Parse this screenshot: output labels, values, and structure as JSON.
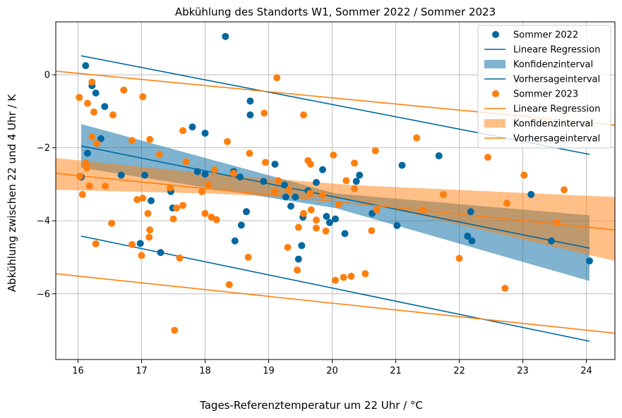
{
  "chart_data": {
    "type": "scatter",
    "title": "Abkühlung des Standorts W1, Sommer 2022 / Sommer 2023",
    "xlabel": "Tages-Referenztemperatur um 22 Uhr / °C",
    "ylabel": "Abkühlung zwischen 22 und 4 Uhr / K",
    "xlim": [
      15.65,
      24.45
    ],
    "ylim": [
      -7.8,
      1.45
    ],
    "xticks": [
      16,
      17,
      18,
      19,
      20,
      21,
      22,
      23,
      24
    ],
    "yticks": [
      0,
      -2,
      -4,
      -6
    ],
    "grid": true,
    "legend_position": "top-right",
    "legend": [
      {
        "label": "Sommer 2022",
        "kind": "marker",
        "color": "#00689f"
      },
      {
        "label": "Lineare Regression",
        "kind": "line",
        "color": "#00689f"
      },
      {
        "label": "Konfidenzinterval",
        "kind": "band",
        "color": "#00689f"
      },
      {
        "label": "Vorhersageinterval",
        "kind": "line",
        "color": "#00689f"
      },
      {
        "label": "Sommer 2023",
        "kind": "marker",
        "color": "#ff7f0e"
      },
      {
        "label": "Lineare Regression",
        "kind": "line",
        "color": "#ff7f0e"
      },
      {
        "label": "Konfidenzinterval",
        "kind": "band",
        "color": "#ff7f0e"
      },
      {
        "label": "Vorhersageinterval",
        "kind": "line",
        "color": "#ff7f0e"
      }
    ],
    "series": [
      {
        "name": "Sommer 2022",
        "color": "#00689f",
        "points": [
          [
            16.05,
            -2.8
          ],
          [
            16.12,
            0.25
          ],
          [
            16.15,
            -2.15
          ],
          [
            16.22,
            -0.3
          ],
          [
            16.28,
            -0.5
          ],
          [
            16.36,
            -1.75
          ],
          [
            16.42,
            -0.87
          ],
          [
            16.68,
            -2.75
          ],
          [
            16.98,
            -4.62
          ],
          [
            17.05,
            -2.75
          ],
          [
            17.15,
            -3.45
          ],
          [
            17.3,
            -4.87
          ],
          [
            17.46,
            -3.2
          ],
          [
            17.49,
            -3.65
          ],
          [
            17.8,
            -1.43
          ],
          [
            17.88,
            -2.65
          ],
          [
            18.0,
            -2.72
          ],
          [
            18.0,
            -1.6
          ],
          [
            18.32,
            1.05
          ],
          [
            18.45,
            -2.65
          ],
          [
            18.47,
            -4.55
          ],
          [
            18.55,
            -2.8
          ],
          [
            18.57,
            -4.12
          ],
          [
            18.65,
            -3.75
          ],
          [
            18.71,
            -1.1
          ],
          [
            18.71,
            -0.72
          ],
          [
            18.92,
            -2.92
          ],
          [
            19.1,
            -2.45
          ],
          [
            19.25,
            -3.02
          ],
          [
            19.27,
            -3.35
          ],
          [
            19.35,
            -3.6
          ],
          [
            19.42,
            -3.35
          ],
          [
            19.47,
            -5.05
          ],
          [
            19.52,
            -4.68
          ],
          [
            19.54,
            -3.9
          ],
          [
            19.62,
            -3.18
          ],
          [
            19.75,
            -2.95
          ],
          [
            19.85,
            -2.6
          ],
          [
            19.91,
            -3.88
          ],
          [
            19.96,
            -4.05
          ],
          [
            20.05,
            -3.95
          ],
          [
            20.2,
            -4.35
          ],
          [
            20.38,
            -2.92
          ],
          [
            20.43,
            -2.75
          ],
          [
            20.63,
            -3.8
          ],
          [
            21.02,
            -4.13
          ],
          [
            21.1,
            -2.48
          ],
          [
            21.68,
            -2.22
          ],
          [
            22.13,
            -4.42
          ],
          [
            22.18,
            -3.75
          ],
          [
            22.2,
            -4.55
          ],
          [
            23.13,
            -3.28
          ],
          [
            23.45,
            -4.55
          ],
          [
            24.05,
            -5.1
          ]
        ],
        "regression": {
          "x": [
            16.05,
            24.05
          ],
          "y": [
            -1.95,
            -4.75
          ]
        },
        "confidence_band": {
          "x": [
            16.05,
            20.05,
            24.05
          ],
          "upper": [
            -1.35,
            -3.25,
            -3.85
          ],
          "lower": [
            -2.55,
            -3.65,
            -5.65
          ]
        },
        "prediction_interval": {
          "x": [
            16.05,
            24.05
          ],
          "upper": [
            0.52,
            -2.18
          ],
          "lower": [
            -4.42,
            -7.3
          ]
        }
      },
      {
        "name": "Sommer 2023",
        "color": "#ff7f0e",
        "points": [
          [
            16.02,
            -0.62
          ],
          [
            16.03,
            -2.78
          ],
          [
            16.07,
            -3.28
          ],
          [
            16.12,
            -2.42
          ],
          [
            16.14,
            -2.55
          ],
          [
            16.15,
            -0.78
          ],
          [
            16.18,
            -3.05
          ],
          [
            16.22,
            -0.2
          ],
          [
            16.22,
            -1.7
          ],
          [
            16.25,
            -1.02
          ],
          [
            16.28,
            -4.63
          ],
          [
            16.3,
            -1.88
          ],
          [
            16.43,
            -3.05
          ],
          [
            16.53,
            -4.07
          ],
          [
            16.55,
            -1.1
          ],
          [
            16.72,
            -0.42
          ],
          [
            16.85,
            -4.65
          ],
          [
            16.85,
            -1.8
          ],
          [
            16.93,
            -3.42
          ],
          [
            17.0,
            -4.95
          ],
          [
            17.02,
            -3.38
          ],
          [
            17.02,
            -0.6
          ],
          [
            17.1,
            -3.8
          ],
          [
            17.12,
            -4.45
          ],
          [
            17.13,
            -4.25
          ],
          [
            17.13,
            -1.77
          ],
          [
            17.28,
            -2.18
          ],
          [
            17.45,
            -3.1
          ],
          [
            17.5,
            -3.95
          ],
          [
            17.52,
            -7.0
          ],
          [
            17.55,
            -3.65
          ],
          [
            17.6,
            -5.02
          ],
          [
            17.65,
            -1.53
          ],
          [
            17.65,
            -3.58
          ],
          [
            17.7,
            -2.38
          ],
          [
            17.95,
            -3.2
          ],
          [
            18.0,
            -3.8
          ],
          [
            18.05,
            -3.02
          ],
          [
            18.1,
            -3.9
          ],
          [
            18.15,
            -2.6
          ],
          [
            18.18,
            -3.97
          ],
          [
            18.35,
            -1.83
          ],
          [
            18.38,
            -5.75
          ],
          [
            18.45,
            -2.7
          ],
          [
            18.68,
            -5.0
          ],
          [
            18.7,
            -2.15
          ],
          [
            18.93,
            -1.05
          ],
          [
            18.95,
            -2.4
          ],
          [
            19.1,
            -3.2
          ],
          [
            19.13,
            -0.08
          ],
          [
            19.15,
            -2.9
          ],
          [
            19.3,
            -4.73
          ],
          [
            19.32,
            -3.15
          ],
          [
            19.45,
            -5.35
          ],
          [
            19.47,
            -4.18
          ],
          [
            19.55,
            -3.8
          ],
          [
            19.55,
            -1.1
          ],
          [
            19.62,
            -2.35
          ],
          [
            19.65,
            -3.25
          ],
          [
            19.66,
            -2.45
          ],
          [
            19.67,
            -3.7
          ],
          [
            19.75,
            -3.98
          ],
          [
            19.75,
            -4.2
          ],
          [
            19.85,
            -3.3
          ],
          [
            19.9,
            -4.28
          ],
          [
            20.02,
            -2.2
          ],
          [
            20.05,
            -5.63
          ],
          [
            20.1,
            -3.55
          ],
          [
            20.18,
            -5.55
          ],
          [
            20.22,
            -2.9
          ],
          [
            20.3,
            -5.52
          ],
          [
            20.35,
            -3.12
          ],
          [
            20.35,
            -2.42
          ],
          [
            20.52,
            -5.45
          ],
          [
            20.62,
            -4.27
          ],
          [
            20.68,
            -2.08
          ],
          [
            20.7,
            -3.7
          ],
          [
            21.33,
            -1.73
          ],
          [
            21.43,
            -3.7
          ],
          [
            21.75,
            -3.28
          ],
          [
            22.0,
            -5.03
          ],
          [
            22.45,
            -2.26
          ],
          [
            22.72,
            -5.85
          ],
          [
            22.75,
            -3.52
          ],
          [
            23.02,
            -2.75
          ],
          [
            23.53,
            -4.05
          ],
          [
            23.65,
            -3.15
          ]
        ],
        "regression": {
          "x": [
            15.65,
            24.45
          ],
          "y": [
            -2.7,
            -4.25
          ]
        },
        "confidence_band": {
          "x": [
            15.65,
            18.0,
            20.3,
            24.45
          ],
          "upper": [
            -2.28,
            -2.7,
            -3.02,
            -3.35
          ],
          "lower": [
            -3.15,
            -3.25,
            -3.42,
            -5.1
          ]
        },
        "prediction_interval": {
          "x": [
            15.65,
            24.45
          ],
          "upper": [
            0.1,
            -1.38
          ],
          "lower": [
            -5.45,
            -7.08
          ]
        }
      }
    ]
  }
}
